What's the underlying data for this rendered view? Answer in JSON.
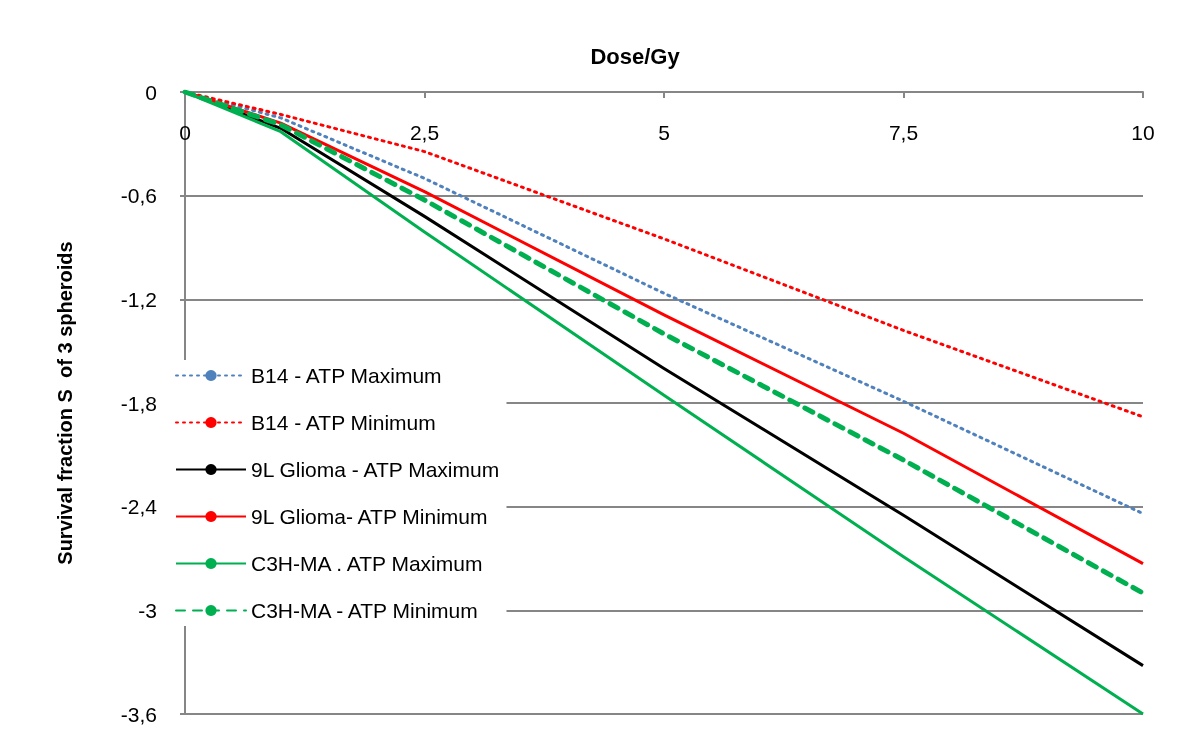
{
  "chart_data": {
    "type": "line",
    "title": "Dose/Gy",
    "ylabel": "Survival fraction S  of 3 spheroids",
    "x": [
      0,
      1,
      2.5,
      5,
      7.5,
      10
    ],
    "series": [
      {
        "name": "B14 - ATP Maximum",
        "color": "#4f81bd",
        "line_style": "dotted",
        "values": [
          0,
          -0.15,
          -0.5,
          -1.165,
          -1.79,
          -2.44
        ]
      },
      {
        "name": "B14 - ATP Minimum",
        "color": "#ff0000",
        "line_style": "dotted",
        "values": [
          0,
          -0.13,
          -0.345,
          -0.85,
          -1.38,
          -1.88
        ]
      },
      {
        "name": "9L Glioma - ATP Maximum",
        "color": "#000000",
        "line_style": "solid",
        "values": [
          0,
          -0.21,
          -0.72,
          -1.6,
          -2.45,
          -3.32
        ]
      },
      {
        "name": "9L Glioma- ATP Minimum",
        "color": "#ff0000",
        "line_style": "solid",
        "values": [
          0,
          -0.18,
          -0.577,
          -1.29,
          -1.975,
          -2.73
        ]
      },
      {
        "name": "C3H-MA . ATP Maximum",
        "color": "#00b050",
        "line_style": "solid",
        "values": [
          0,
          -0.23,
          -0.81,
          -1.755,
          -2.69,
          -3.6
        ]
      },
      {
        "name": "C3H-MA - ATP Minimum",
        "color": "#00b050",
        "line_style": "dashed",
        "values": [
          0,
          -0.19,
          -0.625,
          -1.4,
          -2.13,
          -2.9
        ]
      }
    ],
    "xlim": [
      0,
      10
    ],
    "ylim": [
      -3.6,
      0
    ],
    "xticks": [
      0,
      {
        "value": 2.5,
        "label": "2,5"
      },
      5,
      {
        "value": 7.5,
        "label": "7,5"
      },
      10
    ],
    "yticks": [
      0,
      {
        "value": -0.6,
        "label": "-0,6"
      },
      {
        "value": -1.2,
        "label": "-1,2"
      },
      {
        "value": -1.8,
        "label": "-1,8"
      },
      {
        "value": -2.4,
        "label": "-2,4"
      },
      -3,
      {
        "value": -3.6,
        "label": "-3,6"
      }
    ],
    "grid": "y",
    "legend": "left",
    "marker": "none"
  }
}
